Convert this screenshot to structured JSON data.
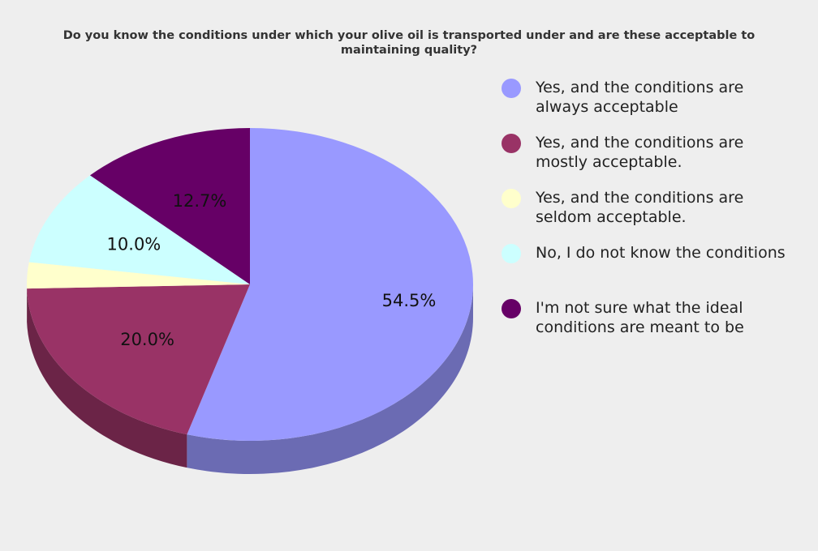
{
  "chart_data": {
    "type": "pie",
    "title": "Do you know the conditions under which your olive oil is transported under and are these acceptable to maintaining quality?",
    "categories": [
      "Yes, and the conditions are always acceptable",
      "Yes, and the conditions are mostly acceptable.",
      "Yes, and the conditions are seldom acceptable.",
      "No, I do not know the conditions",
      "I'm not sure what the ideal conditions are meant to be"
    ],
    "values": [
      54.5,
      20.0,
      2.7,
      10.0,
      12.7
    ],
    "data_labels": [
      "54.5%",
      "20.0%",
      "",
      "10.0%",
      "12.7%"
    ],
    "colors": [
      "#9999ff",
      "#993366",
      "#ffffcc",
      "#ccffff",
      "#660066"
    ],
    "side_colors": [
      "#6b6bb3",
      "#6b2447",
      "#b3b38f",
      "#8fb3b3",
      "#470047"
    ],
    "legend_position": "right",
    "style": "3d"
  }
}
